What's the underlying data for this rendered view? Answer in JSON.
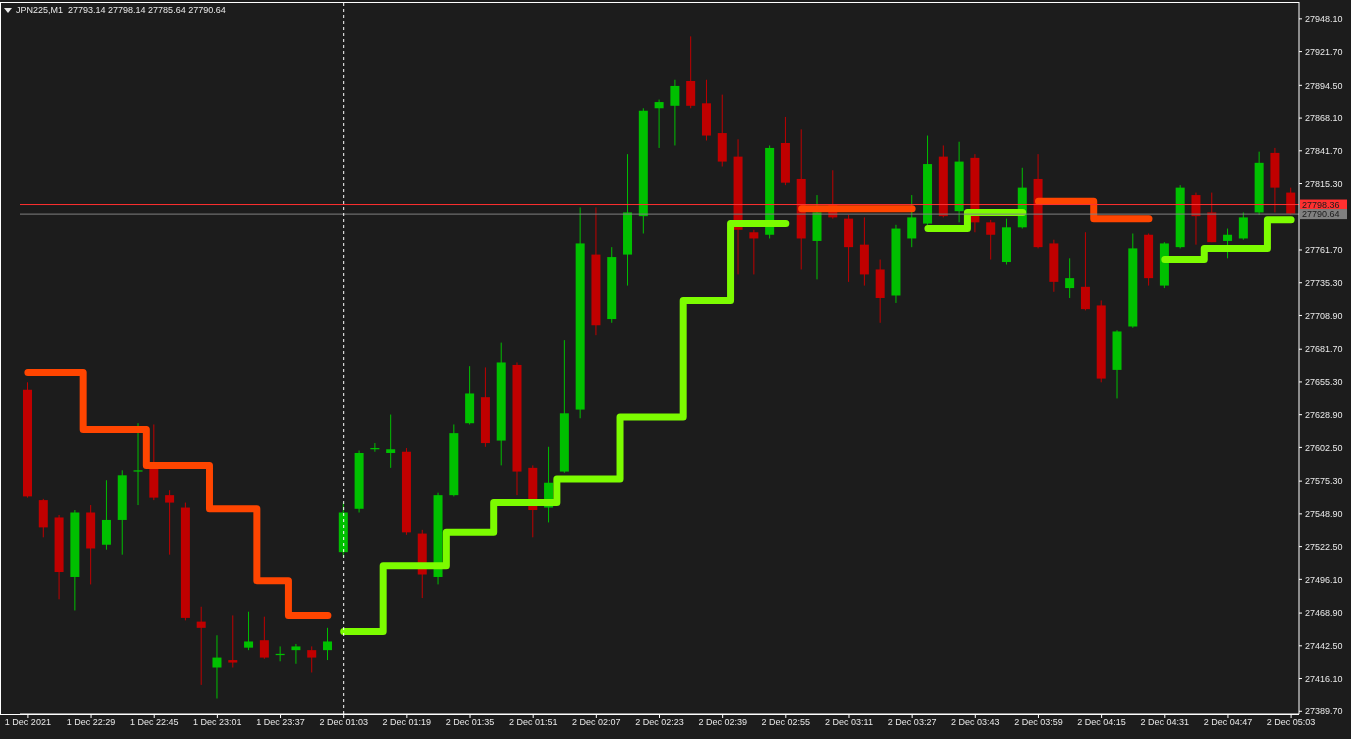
{
  "chart_data": {
    "type": "candlestick",
    "title": "JPN225,M1  27793.14 27798.14 27785.64 27790.64",
    "categories": [
      "1 Dec 2021",
      null,
      null,
      null,
      "1 Dec 22:29",
      null,
      null,
      null,
      "1 Dec 22:45",
      null,
      null,
      null,
      "1 Dec 23:01",
      null,
      null,
      null,
      "1 Dec 23:37",
      null,
      null,
      null,
      "2 Dec 01:03",
      null,
      null,
      null,
      "2 Dec 01:19",
      null,
      null,
      null,
      "2 Dec 01:35",
      null,
      null,
      null,
      "2 Dec 01:51",
      null,
      null,
      null,
      "2 Dec 02:07",
      null,
      null,
      null,
      "2 Dec 02:23",
      null,
      null,
      null,
      "2 Dec 02:39",
      null,
      null,
      null,
      "2 Dec 02:55",
      null,
      null,
      null,
      "2 Dec 03:11",
      null,
      null,
      null,
      "2 Dec 03:27",
      null,
      null,
      null,
      "2 Dec 03:43",
      null,
      null,
      null,
      "2 Dec 03:59",
      null,
      null,
      null,
      "2 Dec 04:15",
      null,
      null,
      null,
      "2 Dec 04:31",
      null,
      null,
      null,
      "2 Dec 04:47",
      null,
      null,
      null,
      "2 Dec 05:03"
    ],
    "ohlc": [
      [
        27649,
        27655,
        27562,
        27563
      ],
      [
        27560,
        27561,
        27530,
        27538
      ],
      [
        27546,
        27548,
        27480,
        27502
      ],
      [
        27498,
        27552,
        27471,
        27550
      ],
      [
        27550,
        27556,
        27492,
        27521
      ],
      [
        27524,
        27576,
        27520,
        27544
      ],
      [
        27544,
        27584,
        27516,
        27580
      ],
      [
        27583,
        27622,
        27556,
        27584
      ],
      [
        27590,
        27621,
        27560,
        27562
      ],
      [
        27564,
        27568,
        27516,
        27558
      ],
      [
        27554,
        27558,
        27463,
        27465
      ],
      [
        27462,
        27474,
        27411,
        27457
      ],
      [
        27425,
        27451,
        27400,
        27433
      ],
      [
        27431,
        27467,
        27425,
        27429
      ],
      [
        27441,
        27470,
        27439,
        27446
      ],
      [
        27447,
        27466,
        27432,
        27433
      ],
      [
        27435,
        27442,
        27430,
        27436
      ],
      [
        27439,
        27444,
        27428,
        27442
      ],
      [
        27439,
        27442,
        27421,
        27433
      ],
      [
        27439,
        27457,
        27431,
        27446
      ],
      [
        27518,
        27558,
        27514,
        27550
      ],
      [
        27553,
        27600,
        27550,
        27598
      ],
      [
        27601,
        27606,
        27599,
        27602
      ],
      [
        27598,
        27629,
        27586,
        27601
      ],
      [
        27599,
        27602,
        27532,
        27534
      ],
      [
        27533,
        27536,
        27481,
        27500
      ],
      [
        27498,
        27566,
        27492,
        27564
      ],
      [
        27564,
        27621,
        27563,
        27614
      ],
      [
        27622,
        27668,
        27621,
        27646
      ],
      [
        27643,
        27667,
        27603,
        27606
      ],
      [
        27608,
        27687,
        27588,
        27671
      ],
      [
        27669,
        27671,
        27564,
        27583
      ],
      [
        27586,
        27588,
        27530,
        27552
      ],
      [
        27554,
        27603,
        27542,
        27574
      ],
      [
        27583,
        27689,
        27582,
        27630
      ],
      [
        27633,
        27796,
        27626,
        27767
      ],
      [
        27758,
        27796,
        27693,
        27701
      ],
      [
        27706,
        27764,
        27703,
        27756
      ],
      [
        27758,
        27839,
        27733,
        27792
      ],
      [
        27789,
        27876,
        27775,
        27874
      ],
      [
        27876,
        27883,
        27844,
        27881
      ],
      [
        27878,
        27899,
        27846,
        27894
      ],
      [
        27898,
        27934,
        27876,
        27878
      ],
      [
        27880,
        27899,
        27850,
        27854
      ],
      [
        27856,
        27887,
        27829,
        27833
      ],
      [
        27837,
        27851,
        27742,
        27778
      ],
      [
        27776,
        27778,
        27742,
        27771
      ],
      [
        27774,
        27846,
        27771,
        27844
      ],
      [
        27848,
        27869,
        27814,
        27816
      ],
      [
        27819,
        27859,
        27746,
        27771
      ],
      [
        27769,
        27806,
        27738,
        27792
      ],
      [
        27798,
        27826,
        27787,
        27788
      ],
      [
        27787,
        27790,
        27736,
        27764
      ],
      [
        27766,
        27788,
        27733,
        27742
      ],
      [
        27746,
        27754,
        27703,
        27723
      ],
      [
        27725,
        27782,
        27719,
        27779
      ],
      [
        27771,
        27806,
        27764,
        27788
      ],
      [
        27783,
        27854,
        27782,
        27831
      ],
      [
        27837,
        27846,
        27788,
        27789
      ],
      [
        27793,
        27849,
        27784,
        27833
      ],
      [
        27836,
        27839,
        27776,
        27784
      ],
      [
        27784,
        27786,
        27754,
        27774
      ],
      [
        27752,
        27787,
        27750,
        27780
      ],
      [
        27780,
        27828,
        27779,
        27812
      ],
      [
        27819,
        27839,
        27763,
        27764
      ],
      [
        27767,
        27770,
        27728,
        27736
      ],
      [
        27731,
        27755,
        27723,
        27739
      ],
      [
        27732,
        27776,
        27713,
        27714
      ],
      [
        27717,
        27721,
        27655,
        27658
      ],
      [
        27665,
        27697,
        27642,
        27696
      ],
      [
        27700,
        27775,
        27699,
        27763
      ],
      [
        27774,
        27775,
        27733,
        27739
      ],
      [
        27733,
        27768,
        27731,
        27767
      ],
      [
        27764,
        27814,
        27763,
        27812
      ],
      [
        27806,
        27808,
        27766,
        27789
      ],
      [
        27792,
        27808,
        27768,
        27768
      ],
      [
        27769,
        27779,
        27755,
        27774
      ],
      [
        27771,
        27792,
        27770,
        27788
      ],
      [
        27792,
        27841,
        27790,
        27832
      ],
      [
        27840,
        27844,
        27792,
        27812
      ],
      [
        27808,
        27812,
        27790,
        27791
      ]
    ],
    "colors": [
      "#c00000",
      "#c00000",
      "#c00000",
      "#00c000",
      "#c00000",
      "#00c000",
      "#00c000",
      "#00c000",
      "#c00000",
      "#c00000",
      "#c00000",
      "#c00000",
      "#00c000",
      "#c00000",
      "#00c000",
      "#c00000",
      "#00c000",
      "#00c000",
      "#c00000",
      "#00c000",
      "#00c000",
      "#00c000",
      "#00c000",
      "#00c000",
      "#c00000",
      "#c00000",
      "#00c000",
      "#00c000",
      "#00c000",
      "#c00000",
      "#00c000",
      "#c00000",
      "#c00000",
      "#00c000",
      "#00c000",
      "#00c000",
      "#c00000",
      "#00c000",
      "#00c000",
      "#00c000",
      "#00c000",
      "#00c000",
      "#c00000",
      "#c00000",
      "#c00000",
      "#c00000",
      "#c00000",
      "#00c000",
      "#c00000",
      "#c00000",
      "#00c000",
      "#c00000",
      "#c00000",
      "#c00000",
      "#c00000",
      "#00c000",
      "#00c000",
      "#00c000",
      "#c00000",
      "#00c000",
      "#c00000",
      "#c00000",
      "#00c000",
      "#00c000",
      "#c00000",
      "#c00000",
      "#00c000",
      "#c00000",
      "#c00000",
      "#00c000",
      "#00c000",
      "#c00000",
      "#00c000",
      "#00c000",
      "#c00000",
      "#c00000",
      "#00c000",
      "#00c000",
      "#00c000",
      "#c00000",
      "#c00000"
    ],
    "series": [
      {
        "type": "step",
        "color": "#ff4500",
        "values": [
          27663,
          27663,
          27663,
          27663,
          27617,
          27617,
          27617,
          27617,
          27588,
          27588,
          27588,
          27588,
          27553,
          27553,
          27553,
          27495,
          27495,
          27467,
          27467,
          27467,
          null,
          null,
          null,
          null,
          null,
          null,
          null,
          null,
          null,
          null,
          null,
          null,
          null,
          null,
          null,
          null,
          null,
          null,
          null,
          null,
          null,
          null,
          null,
          null,
          null,
          null,
          null,
          null,
          null,
          27795,
          27795,
          27795,
          27795,
          27795,
          27795,
          27795,
          27795,
          null,
          null,
          null,
          null,
          null,
          null,
          null,
          27801,
          27801,
          27801,
          27801,
          27787,
          27787,
          27787,
          27787,
          null,
          null,
          null,
          null,
          null,
          null,
          null,
          null,
          null
        ]
      },
      {
        "type": "step",
        "color": "#7cfc00",
        "values": [
          null,
          null,
          null,
          null,
          null,
          null,
          null,
          null,
          null,
          null,
          null,
          null,
          null,
          null,
          null,
          null,
          null,
          null,
          null,
          null,
          27454,
          27454,
          27454,
          27507,
          27507,
          27507,
          27507,
          27534,
          27534,
          27534,
          27558,
          27558,
          27558,
          27558,
          27577,
          27577,
          27577,
          27577,
          27627,
          27627,
          27627,
          27627,
          27721,
          27721,
          27721,
          27783,
          27783,
          27783,
          27783,
          null,
          null,
          null,
          null,
          null,
          null,
          null,
          null,
          27779,
          27779,
          27779,
          27792,
          27792,
          27792,
          27792,
          null,
          null,
          null,
          null,
          null,
          null,
          null,
          null,
          27754,
          27754,
          27754,
          27763,
          27763,
          27763,
          27763,
          27786,
          27786
        ]
      }
    ],
    "ylim": [
      27387.5,
      27961.7
    ],
    "yticks": [
      {
        "value": 27948.1,
        "label": "27948.10"
      },
      {
        "value": 27921.7,
        "label": "27921.70"
      },
      {
        "value": 27894.5,
        "label": "27894.50"
      },
      {
        "value": 27868.1,
        "label": "27868.10"
      },
      {
        "value": 27841.7,
        "label": "27841.70"
      },
      {
        "value": 27815.3,
        "label": "27815.30"
      },
      {
        "value": 27761.7,
        "label": "27761.70"
      },
      {
        "value": 27735.3,
        "label": "27735.30"
      },
      {
        "value": 27708.9,
        "label": "27708.90"
      },
      {
        "value": 27681.7,
        "label": "27681.70"
      },
      {
        "value": 27655.3,
        "label": "27655.30"
      },
      {
        "value": 27628.9,
        "label": "27628.90"
      },
      {
        "value": 27602.5,
        "label": "27602.50"
      },
      {
        "value": 27575.3,
        "label": "27575.30"
      },
      {
        "value": 27548.9,
        "label": "27548.90"
      },
      {
        "value": 27522.5,
        "label": "27522.50"
      },
      {
        "value": 27496.1,
        "label": "27496.10"
      },
      {
        "value": 27468.9,
        "label": "27468.90"
      },
      {
        "value": 27442.5,
        "label": "27442.50"
      },
      {
        "value": 27416.1,
        "label": "27416.10"
      },
      {
        "value": 27389.7,
        "label": "27389.70"
      }
    ],
    "ref_lines": [
      {
        "axis": "y",
        "value": 27798.36,
        "label": "27798.36",
        "color": "#ff3030"
      },
      {
        "axis": "y",
        "value": 27790.64,
        "label": "27790.64",
        "color": "#808080"
      },
      {
        "axis": "x",
        "value": "2 Dec 01:03",
        "color": "#ffffff",
        "line_style": "dashed"
      }
    ]
  }
}
